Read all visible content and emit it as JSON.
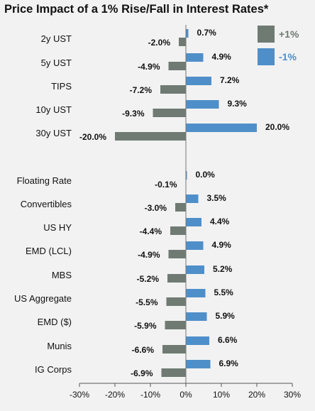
{
  "chart_data": {
    "type": "bar",
    "orientation": "horizontal",
    "title": "Price Impact of a 1% Rise/Fall in Interest Rates*",
    "categories": [
      "2y UST",
      "5y UST",
      "TIPS",
      "10y UST",
      "30y UST",
      "Floating Rate",
      "Convertibles",
      "US HY",
      "EMD (LCL)",
      "MBS",
      "US Aggregate",
      "EMD ($)",
      "Munis",
      "IG Corps"
    ],
    "series": [
      {
        "name": "+1%",
        "color": "#6f7b72",
        "values": [
          -2.0,
          -4.9,
          -7.2,
          -9.3,
          -20.0,
          -0.1,
          -3.0,
          -4.4,
          -4.9,
          -5.2,
          -5.5,
          -5.9,
          -6.6,
          -6.9
        ],
        "labels": [
          "-2.0%",
          "-4.9%",
          "-7.2%",
          "-9.3%",
          "-20.0%",
          "-0.1%",
          "-3.0%",
          "-4.4%",
          "-4.9%",
          "-5.2%",
          "-5.5%",
          "-5.9%",
          "-6.6%",
          "-6.9%"
        ]
      },
      {
        "name": "-1%",
        "color": "#4f8fc9",
        "values": [
          0.7,
          4.9,
          7.2,
          9.3,
          20.0,
          0.0,
          3.5,
          4.4,
          4.9,
          5.2,
          5.5,
          5.9,
          6.6,
          6.9
        ],
        "labels": [
          "0.7%",
          "4.9%",
          "7.2%",
          "9.3%",
          "20.0%",
          "0.0%",
          "3.5%",
          "4.4%",
          "4.9%",
          "5.2%",
          "5.5%",
          "5.9%",
          "6.6%",
          "6.9%"
        ]
      }
    ],
    "xlim": [
      -30,
      30
    ],
    "xticks": [
      -30,
      -20,
      -10,
      0,
      10,
      20,
      30
    ],
    "xtick_labels": [
      "-30%",
      "-20%",
      "-10%",
      "0%",
      "10%",
      "20%",
      "30%"
    ],
    "legend": "top-right",
    "grid": false
  }
}
